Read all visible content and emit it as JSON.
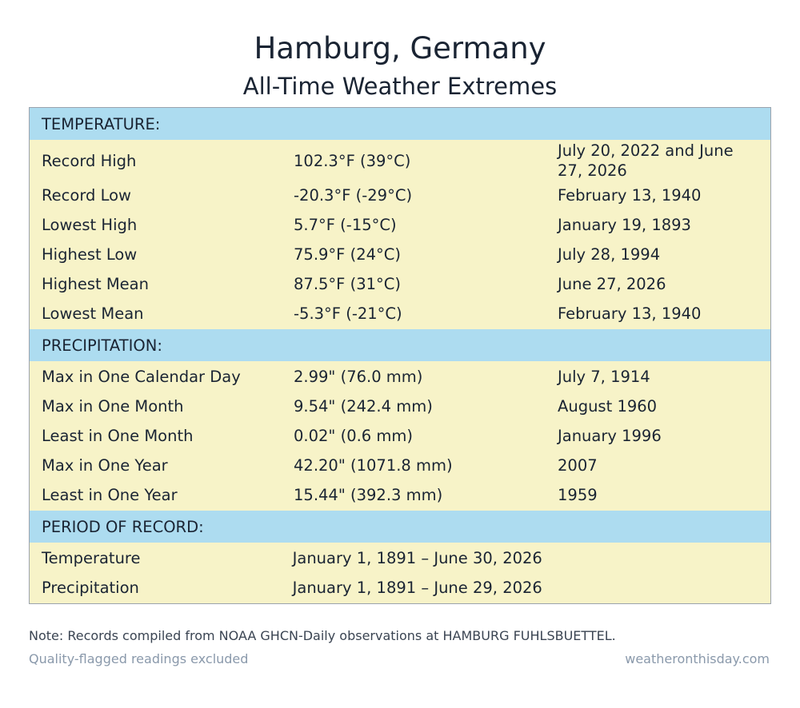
{
  "header": {
    "title": "Hamburg, Germany",
    "subtitle": "All-Time Weather Extremes"
  },
  "temperature": {
    "heading": "TEMPERATURE:",
    "rows": [
      {
        "label": "Record High",
        "value": "102.3°F (39°C)",
        "date": "July 20, 2022 and June 27, 2026"
      },
      {
        "label": "Record Low",
        "value": "-20.3°F (-29°C)",
        "date": "February 13, 1940"
      },
      {
        "label": "Lowest High",
        "value": "5.7°F (-15°C)",
        "date": "January 19, 1893"
      },
      {
        "label": "Highest Low",
        "value": "75.9°F (24°C)",
        "date": "July 28, 1994"
      },
      {
        "label": "Highest Mean",
        "value": "87.5°F (31°C)",
        "date": "June 27, 2026"
      },
      {
        "label": "Lowest Mean",
        "value": "-5.3°F (-21°C)",
        "date": "February 13, 1940"
      }
    ]
  },
  "precipitation": {
    "heading": "PRECIPITATION:",
    "rows": [
      {
        "label": "Max in One Calendar Day",
        "value": "2.99\" (76.0 mm)",
        "date": "July 7, 1914"
      },
      {
        "label": "Max in One Month",
        "value": "9.54\" (242.4 mm)",
        "date": "August 1960"
      },
      {
        "label": "Least in One Month",
        "value": "0.02\" (0.6 mm)",
        "date": "January 1996"
      },
      {
        "label": "Max in One Year",
        "value": "42.20\" (1071.8 mm)",
        "date": "2007"
      },
      {
        "label": "Least in One Year",
        "value": "15.44\" (392.3 mm)",
        "date": "1959"
      }
    ]
  },
  "period": {
    "heading": "PERIOD OF RECORD:",
    "rows": [
      {
        "label": "Temperature",
        "value": "January 1, 1891 – June 30, 2026",
        "date": ""
      },
      {
        "label": "Precipitation",
        "value": "January 1, 1891 – June 29, 2026",
        "date": ""
      }
    ]
  },
  "footer": {
    "note": "Note: Records compiled from NOAA GHCN-Daily observations at HAMBURG FUHLSBUETTEL.",
    "left": "Quality-flagged readings excluded",
    "right": "weatheronthisday.com"
  },
  "colors": {
    "section_header_bg": "#addcf0",
    "row_bg": "#f7f3c8",
    "muted_text": "#8a99ab"
  }
}
